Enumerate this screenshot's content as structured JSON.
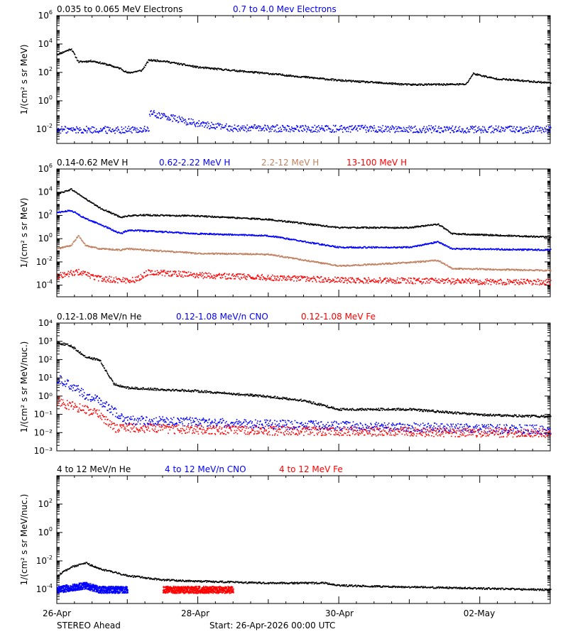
{
  "figure": {
    "spacecraft_label": "STEREO Ahead",
    "start_label": "Start: 26-Apr-2026 00:00 UTC",
    "x_tick_labels": [
      "26-Apr",
      "28-Apr",
      "30-Apr",
      "02-May"
    ]
  },
  "chart_data": [
    {
      "type": "scatter",
      "id": "electrons",
      "ylabel": "1/(cm² s sr MeV)",
      "yscale": "log",
      "ylim": [
        0.001,
        1000000
      ],
      "xlim": [
        0,
        7
      ],
      "x_unit": "days since 26-Apr 00:00",
      "ytick_exponents": [
        -2,
        0,
        2,
        4,
        6
      ],
      "series": [
        {
          "name": "0.035 to 0.065 MeV Electrons",
          "color": "#000000",
          "points": [
            [
              0,
              2000
            ],
            [
              0.2,
              5000
            ],
            [
              0.3,
              600
            ],
            [
              0.5,
              700
            ],
            [
              0.7,
              400
            ],
            [
              0.9,
              200
            ],
            [
              1.0,
              100
            ],
            [
              1.2,
              150
            ],
            [
              1.3,
              800
            ],
            [
              1.5,
              700
            ],
            [
              2,
              250
            ],
            [
              3,
              90
            ],
            [
              4,
              30
            ],
            [
              5,
              15
            ],
            [
              5.8,
              16
            ],
            [
              5.9,
              90
            ],
            [
              6.2,
              40
            ],
            [
              7,
              20
            ]
          ]
        },
        {
          "name": "0.7 to 4.0 Mev Electrons",
          "color": "#0000ff",
          "points": [
            [
              0,
              0.01
            ],
            [
              1.3,
              0.01
            ],
            [
              1.31,
              0.15
            ],
            [
              1.6,
              0.07
            ],
            [
              2.0,
              0.025
            ],
            [
              2.5,
              0.013
            ],
            [
              7,
              0.01
            ]
          ]
        }
      ]
    },
    {
      "type": "scatter",
      "id": "protons",
      "ylabel": "1/(cm² s sr MeV)",
      "yscale": "log",
      "ylim": [
        1e-05,
        1000000
      ],
      "xlim": [
        0,
        7
      ],
      "x_unit": "days since 26-Apr 00:00",
      "ytick_exponents": [
        -4,
        -2,
        0,
        2,
        4,
        6
      ],
      "series": [
        {
          "name": "0.14-0.62 MeV H",
          "color": "#000000",
          "points": [
            [
              0,
              8000
            ],
            [
              0.2,
              20000
            ],
            [
              0.4,
              3000
            ],
            [
              0.6,
              500
            ],
            [
              0.9,
              80
            ],
            [
              1.0,
              100
            ],
            [
              1.2,
              120
            ],
            [
              2,
              100
            ],
            [
              3,
              50
            ],
            [
              4,
              10
            ],
            [
              5,
              10
            ],
            [
              5.4,
              20
            ],
            [
              5.6,
              3
            ],
            [
              7,
              1.5
            ]
          ]
        },
        {
          "name": "0.62-2.22 MeV H",
          "color": "#0000ff",
          "points": [
            [
              0,
              200
            ],
            [
              0.2,
              300
            ],
            [
              0.4,
              60
            ],
            [
              0.6,
              20
            ],
            [
              0.9,
              3
            ],
            [
              1.0,
              6
            ],
            [
              1.3,
              5
            ],
            [
              2,
              3
            ],
            [
              3,
              2
            ],
            [
              4,
              0.2
            ],
            [
              5,
              0.2
            ],
            [
              5.4,
              0.6
            ],
            [
              5.6,
              0.15
            ],
            [
              7,
              0.12
            ]
          ]
        },
        {
          "name": "2.2-12 MeV H",
          "color": "#c08060",
          "points": [
            [
              0,
              0.15
            ],
            [
              0.2,
              0.3
            ],
            [
              0.3,
              2
            ],
            [
              0.4,
              0.3
            ],
            [
              0.6,
              0.15
            ],
            [
              0.9,
              0.12
            ],
            [
              1.0,
              0.15
            ],
            [
              2,
              0.06
            ],
            [
              3,
              0.05
            ],
            [
              4,
              0.005
            ],
            [
              5,
              0.01
            ],
            [
              5.4,
              0.015
            ],
            [
              5.6,
              0.003
            ],
            [
              7,
              0.002
            ]
          ]
        },
        {
          "name": "13-100 MeV H",
          "color": "#ff0000",
          "points": [
            [
              0,
              0.0007
            ],
            [
              0.3,
              0.0015
            ],
            [
              0.6,
              0.0004
            ],
            [
              0.9,
              0.0003
            ],
            [
              1.1,
              0.0003
            ],
            [
              1.3,
              0.0015
            ],
            [
              2,
              0.0008
            ],
            [
              3,
              0.0005
            ],
            [
              4,
              0.0003
            ],
            [
              7,
              0.0002
            ]
          ]
        }
      ]
    },
    {
      "type": "scatter",
      "id": "he_cno_fe_low",
      "ylabel": "1/(cm² s sr MeV/nuc.)",
      "yscale": "log",
      "ylim": [
        0.001,
        10000
      ],
      "xlim": [
        0,
        7
      ],
      "x_unit": "days since 26-Apr 00:00",
      "ytick_labels": [
        "10⁻³",
        "10⁻²",
        "10⁻¹",
        "10⁰",
        "10¹",
        "10²",
        "10³",
        "10⁴"
      ],
      "series": [
        {
          "name": "0.12-1.08 MeV/n He",
          "color": "#000000",
          "points": [
            [
              0,
              900
            ],
            [
              0.2,
              600
            ],
            [
              0.4,
              150
            ],
            [
              0.6,
              100
            ],
            [
              0.8,
              5
            ],
            [
              1.0,
              3
            ],
            [
              2,
              2
            ],
            [
              3,
              1
            ],
            [
              3.5,
              0.6
            ],
            [
              4,
              0.2
            ],
            [
              5,
              0.2
            ],
            [
              6,
              0.1
            ],
            [
              7,
              0.08
            ]
          ]
        },
        {
          "name": "0.12-1.08 MeV/n CNO",
          "color": "#0000ff",
          "points": [
            [
              0,
              10
            ],
            [
              0.2,
              4
            ],
            [
              0.4,
              1.2
            ],
            [
              0.6,
              0.6
            ],
            [
              0.8,
              0.15
            ],
            [
              1.0,
              0.05
            ],
            [
              2,
              0.04
            ],
            [
              3,
              0.03
            ],
            [
              7,
              0.015
            ]
          ]
        },
        {
          "name": "0.12-1.08 MeV Fe",
          "color": "#ff0000",
          "points": [
            [
              0,
              0.6
            ],
            [
              0.2,
              0.3
            ],
            [
              0.4,
              0.2
            ],
            [
              0.6,
              0.1
            ],
            [
              0.8,
              0.02
            ],
            [
              1.0,
              0.02
            ],
            [
              2,
              0.015
            ],
            [
              7,
              0.01
            ]
          ]
        }
      ]
    },
    {
      "type": "scatter",
      "id": "he_cno_fe_high",
      "ylabel": "1/(cm² s sr MeV/nuc.)",
      "yscale": "log",
      "ylim": [
        1e-05,
        10000
      ],
      "xlim": [
        0,
        7
      ],
      "x_unit": "days since 26-Apr 00:00",
      "ytick_exponents": [
        -4,
        -2,
        0,
        2
      ],
      "series": [
        {
          "name": "4 to 12 MeV/n He",
          "color": "#000000",
          "points": [
            [
              0,
              0.001
            ],
            [
              0.2,
              0.004
            ],
            [
              0.4,
              0.008
            ],
            [
              0.6,
              0.003
            ],
            [
              1.0,
              0.001
            ],
            [
              1.5,
              0.0005
            ],
            [
              2,
              0.0004
            ],
            [
              3,
              0.0003
            ],
            [
              3.8,
              0.0003
            ],
            [
              4,
              0.0002
            ],
            [
              7,
              0.0001
            ]
          ]
        },
        {
          "name": "4 to 12 MeV/n CNO",
          "color": "#0000ff",
          "points": [
            [
              0,
              0.0001
            ],
            [
              0.4,
              0.0002
            ],
            [
              0.6,
              0.0001
            ],
            [
              1.0,
              0.0001
            ]
          ]
        },
        {
          "name": "4 to 12 MeV Fe",
          "color": "#ff0000",
          "points": [
            [
              1.5,
              0.0001
            ],
            [
              2,
              0.0001
            ],
            [
              2.5,
              0.0001
            ]
          ]
        }
      ]
    }
  ]
}
